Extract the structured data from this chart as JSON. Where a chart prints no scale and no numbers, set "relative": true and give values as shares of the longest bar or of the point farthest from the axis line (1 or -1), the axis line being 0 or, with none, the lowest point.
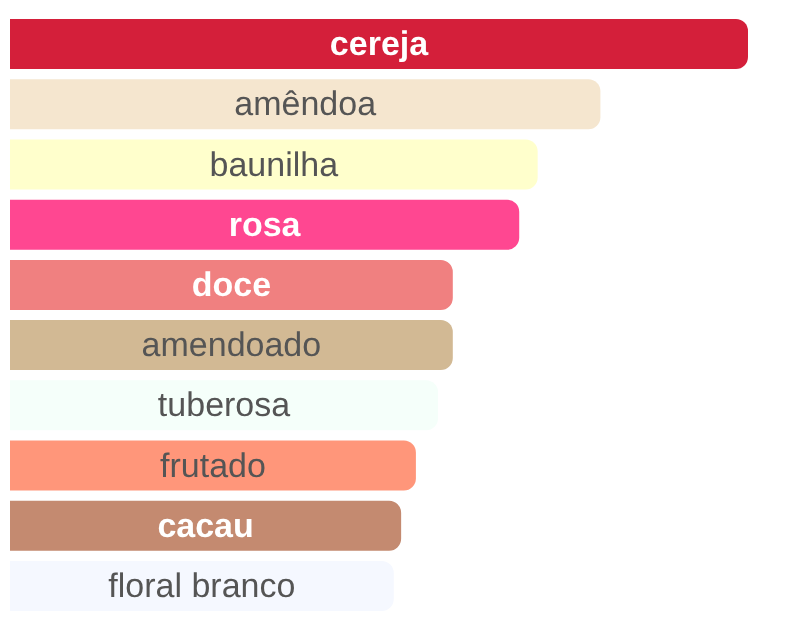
{
  "chart_data": {
    "type": "bar",
    "orientation": "horizontal",
    "relative": true,
    "categories": [
      "cereja",
      "amêndoa",
      "baunilha",
      "rosa",
      "doce",
      "amendoado",
      "tuberosa",
      "frutado",
      "cacau",
      "floral branco"
    ],
    "values": [
      1,
      0.8,
      0.715,
      0.69,
      0.6,
      0.6,
      0.58,
      0.55,
      0.53,
      0.52
    ],
    "colors": [
      "#d41f3a",
      "#f5e6cf",
      "#ffffcc",
      "#ff4791",
      "#f08080",
      "#d2b994",
      "#f5fffa",
      "#ff967a",
      "#c48a70",
      "#f5f8ff"
    ]
  }
}
